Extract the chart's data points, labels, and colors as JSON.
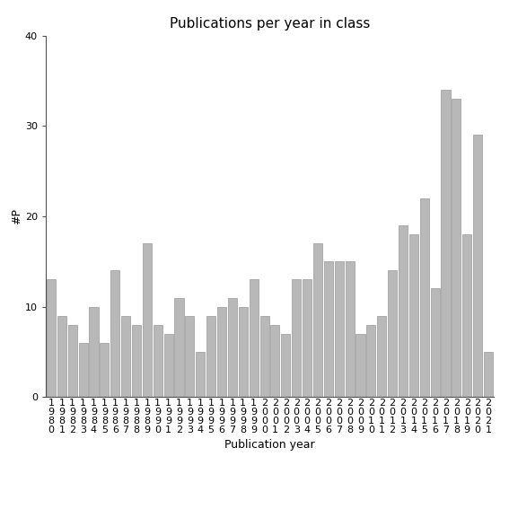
{
  "title": "Publications per year in class",
  "xlabel": "Publication year",
  "ylabel": "#P",
  "years": [
    1980,
    1981,
    1982,
    1983,
    1984,
    1985,
    1986,
    1987,
    1988,
    1989,
    1990,
    1991,
    1992,
    1993,
    1994,
    1995,
    1996,
    1997,
    1998,
    1999,
    2000,
    2001,
    2002,
    2003,
    2004,
    2005,
    2006,
    2007,
    2008,
    2009,
    2010,
    2011,
    2012,
    2013,
    2014,
    2015,
    2016,
    2017,
    2018,
    2019,
    2020,
    2021
  ],
  "values": [
    13,
    9,
    8,
    6,
    10,
    6,
    14,
    9,
    8,
    17,
    8,
    7,
    11,
    9,
    5,
    9,
    10,
    11,
    10,
    13,
    9,
    8,
    7,
    13,
    13,
    17,
    15,
    15,
    15,
    7,
    8,
    9,
    14,
    19,
    18,
    22,
    12,
    34,
    33,
    18,
    29,
    5
  ],
  "bar_color": "#b8b8b8",
  "bar_edgecolor": "#888888",
  "ylim": [
    0,
    40
  ],
  "yticks": [
    0,
    10,
    20,
    30,
    40
  ],
  "background_color": "#ffffff",
  "title_fontsize": 11,
  "axis_label_fontsize": 9,
  "tick_fontsize": 8
}
